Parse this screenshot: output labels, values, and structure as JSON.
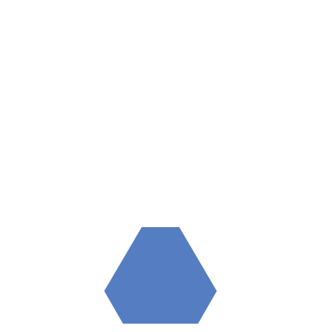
{
  "canvas": {
    "background_color": "#ffffff"
  },
  "shape": {
    "kind": "hexagon",
    "fill_color": "#557ec2"
  }
}
